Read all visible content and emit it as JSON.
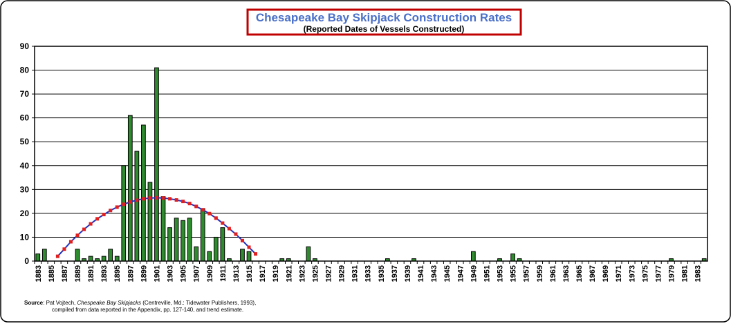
{
  "chart_data": {
    "type": "bar",
    "title": "Chesapeake Bay Skipjack Construction Rates",
    "subtitle": "(Reported Dates of Vessels Constructed)",
    "categories": [
      "1883",
      null,
      "1885",
      null,
      "1887",
      null,
      "1889",
      null,
      "1891",
      null,
      "1893",
      null,
      "1895",
      null,
      "1897",
      null,
      "1899",
      null,
      "1901",
      null,
      "1903",
      null,
      "1905",
      null,
      "1907",
      null,
      "1909",
      null,
      "1911",
      null,
      "1913",
      null,
      "1915",
      null,
      "1917",
      null,
      "1919",
      null,
      "1921",
      null,
      "1923",
      null,
      "1925",
      null,
      "1927",
      null,
      "1929",
      null,
      "1931",
      null,
      "1933",
      null,
      "1935",
      null,
      "1937",
      null,
      "1939",
      null,
      "1941",
      null,
      "1943",
      null,
      "1945",
      null,
      "1947",
      null,
      "1949",
      null,
      "1951",
      null,
      "1953",
      null,
      "1955",
      null,
      "1957",
      null,
      "1959",
      null,
      "1961",
      null,
      "1963",
      null,
      "1965",
      null,
      "1967",
      null,
      "1969",
      null,
      "1971",
      null,
      "1973",
      null,
      "1975",
      null,
      "1977",
      null,
      "1979",
      null,
      "1981",
      null,
      "1983",
      null
    ],
    "series": [
      {
        "type": "bar",
        "color": "#2e8b2e",
        "values": [
          3,
          5,
          0,
          0,
          0,
          0,
          5,
          1,
          2,
          1,
          2,
          5,
          2,
          40,
          61,
          46,
          57,
          33,
          81,
          27,
          14,
          18,
          17,
          18,
          6,
          22,
          4,
          10,
          14,
          1,
          0,
          5,
          4,
          0,
          0,
          0,
          0,
          1,
          1,
          0,
          0,
          6,
          1,
          0,
          0,
          0,
          0,
          0,
          0,
          0,
          0,
          0,
          0,
          1,
          0,
          0,
          0,
          1,
          0,
          0,
          0,
          0,
          0,
          0,
          0,
          0,
          4,
          0,
          0,
          0,
          1,
          0,
          3,
          1,
          0,
          0,
          0,
          0,
          0,
          0,
          0,
          0,
          0,
          0,
          0,
          0,
          0,
          0,
          0,
          0,
          0,
          0,
          0,
          0,
          0,
          0,
          1,
          0,
          0,
          0,
          0,
          1
        ]
      },
      {
        "type": "line",
        "color": "#1f2fbf",
        "marker_color": "#e0201f",
        "values": [
          null,
          null,
          null,
          2,
          5,
          8.1,
          10.8,
          13.3,
          15.6,
          17.7,
          19.5,
          21.2,
          22.6,
          23.8,
          24.8,
          25.5,
          26.1,
          26.4,
          26.5,
          26.4,
          26.1,
          25.6,
          25,
          24.1,
          22.9,
          21.5,
          19.9,
          18,
          15.9,
          13.6,
          11.3,
          8.6,
          5.8,
          3,
          null,
          null,
          null,
          null,
          null,
          null,
          null,
          null,
          null,
          null,
          null,
          null,
          null,
          null,
          null,
          null,
          null,
          null,
          null,
          null,
          null,
          null,
          null,
          null,
          null,
          null,
          null,
          null,
          null,
          null,
          null,
          null,
          null,
          null,
          null,
          null,
          null,
          null,
          null,
          null,
          null,
          null,
          null,
          null,
          null,
          null,
          null,
          null,
          null,
          null,
          null,
          null,
          null,
          null,
          null,
          null,
          null,
          null,
          null,
          null,
          null,
          null,
          null,
          null,
          null,
          null,
          null,
          null
        ]
      }
    ],
    "ylim": [
      0,
      90
    ],
    "yticks": [
      0,
      10,
      20,
      30,
      40,
      50,
      60,
      70,
      80,
      90
    ],
    "grid": true,
    "source": {
      "label": "Source",
      "lead": ":  Pat Vojtech, ",
      "book": "Chespeake Bay Skipjacks",
      "rest": " (Centreville, Md.:  Tidewater Publishers, 1993),",
      "line2": "compiled from data reported in the Appendix, pp. 127-140, and trend estimate."
    }
  }
}
